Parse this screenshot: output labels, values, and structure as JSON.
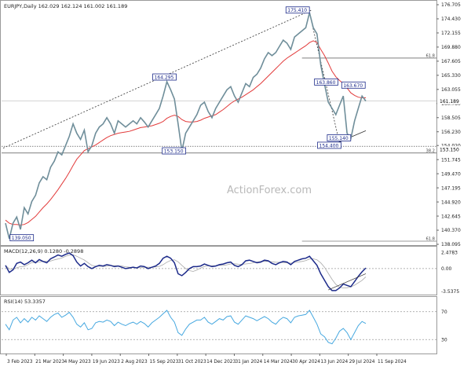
{
  "chart_data": [
    {
      "type": "line",
      "title": "EURJPY,Daily  162.029 162.124 161.002 161.189",
      "series": [
        {
          "name": "",
          "values": [
            141.5,
            139.0,
            141.5,
            142.5,
            140.5,
            144,
            143,
            145,
            146,
            148,
            149,
            148.5,
            150.5,
            151.5,
            153,
            152.5,
            154,
            155.5,
            157.5,
            156,
            155,
            156.5,
            153,
            154,
            156,
            157,
            157.5,
            158.5,
            157.5,
            156,
            158,
            157.5,
            157,
            157.5,
            158,
            157.5,
            158.5,
            157.8,
            157,
            158,
            159,
            160,
            162,
            164.3,
            163,
            161.5,
            157.5,
            153.15,
            156,
            157,
            158,
            159,
            160.5,
            161,
            159.5,
            158.5,
            160,
            161,
            162,
            163,
            163.5,
            162,
            161,
            162.5,
            164,
            163.5,
            165,
            165.5,
            166.5,
            168,
            169,
            168.5,
            169,
            170,
            171,
            170.5,
            169.5,
            171.5,
            172,
            172.5,
            173,
            175.41,
            173,
            172,
            167,
            163.9,
            161,
            160,
            159,
            160.5,
            162,
            156,
            155.14,
            158,
            160,
            162,
            161.189
          ]
        },
        {
          "name": "",
          "values": [
            142,
            141.5,
            141.3,
            141.3,
            141.2,
            141.3,
            141.6,
            142.1,
            142.6,
            143.3,
            144,
            144.6,
            145.3,
            146.1,
            146.9,
            147.8,
            148.7,
            149.7,
            150.8,
            151.8,
            152.5,
            153.2,
            153.5,
            153.8,
            154.1,
            154.5,
            154.9,
            155.3,
            155.6,
            155.8,
            156,
            156.1,
            156.2,
            156.3,
            156.5,
            156.7,
            156.9,
            157,
            157.1,
            157.2,
            157.4,
            157.6,
            157.9,
            158.4,
            158.7,
            158.9,
            158.7,
            158.2,
            157.9,
            157.8,
            157.8,
            157.9,
            158.1,
            158.4,
            158.6,
            158.8,
            159,
            159.4,
            159.8,
            160.3,
            160.8,
            161.2,
            161.5,
            161.8,
            162.2,
            162.6,
            163,
            163.5,
            164,
            164.6,
            165.2,
            165.8,
            166.4,
            167,
            167.6,
            168.1,
            168.5,
            168.9,
            169.3,
            169.7,
            170.1,
            170.6,
            170.9,
            170.6,
            169.5,
            168.5,
            167.3,
            166,
            165.1,
            164.5,
            164,
            163.3,
            162.5,
            162.1,
            161.8,
            161.7,
            161.7
          ]
        }
      ],
      "y_ticks": [
        "176.705",
        "174.430",
        "172.155",
        "169.880",
        "167.605",
        "165.330",
        "163.055",
        "160.780",
        "158.505",
        "156.230",
        "154.020",
        "151.745",
        "149.470",
        "147.195",
        "144.920",
        "142.645",
        "140.370",
        "138.095"
      ],
      "x_ticks": [
        "3 Feb 2023",
        "21 Mar 2023",
        "4 May 2023",
        "19 Jun 2023",
        "2 Aug 2023",
        "15 Sep 2023",
        "31 Oct 2023",
        "14 Dec 2023",
        "31 Jan 2024",
        "14 Mar 2024",
        "30 Apr 2024",
        "13 Jun 2024",
        "29 Jul 2024",
        "11 Sep 2024"
      ],
      "ylim": [
        138.095,
        176.705
      ],
      "price_labels": [
        "139.050",
        "153.150",
        "164.295",
        "175.410",
        "163.860",
        "163.670",
        "154.400",
        "155.140"
      ],
      "fib_labels": [
        "61.8",
        "38.2",
        "61.8"
      ],
      "current_price_label": "161.189",
      "support_price_label": "153.150"
    },
    {
      "type": "line",
      "title": "MACD(12,26,9) 0.1280 -0.2898",
      "y_ticks": [
        "2.4783",
        "0.00",
        "-3.5375"
      ],
      "series": [
        {
          "name": "",
          "values": [
            0.5,
            -0.6,
            -0.2,
            0.8,
            1.0,
            0.6,
            0.9,
            1.3,
            0.9,
            1.4,
            1.1,
            0.9,
            1.5,
            1.8,
            2.1,
            1.9,
            2.2,
            2.4,
            2.0,
            1.0,
            0.4,
            0.8,
            0.3,
            0.0,
            0.3,
            0.5,
            0.4,
            0.6,
            0.5,
            0.3,
            0.4,
            0.2,
            0.0,
            0.1,
            0.2,
            0.1,
            0.4,
            0.3,
            0.0,
            0.2,
            0.4,
            0.8,
            1.6,
            1.9,
            1.6,
            0.9,
            -0.8,
            -1.1,
            -0.6,
            0.0,
            0.3,
            0.3,
            0.4,
            0.7,
            0.5,
            0.3,
            0.4,
            0.6,
            0.7,
            0.9,
            1.0,
            0.5,
            0.3,
            0.6,
            1.2,
            1.3,
            1.1,
            0.9,
            1.0,
            1.3,
            1.2,
            0.8,
            0.6,
            0.9,
            1.1,
            1.0,
            0.6,
            1.1,
            1.3,
            1.5,
            1.6,
            1.9,
            1.2,
            0.5,
            -0.8,
            -1.8,
            -2.8,
            -3.4,
            -3.4,
            -3.0,
            -2.4,
            -2.6,
            -2.8,
            -2.0,
            -1.2,
            -0.5,
            0.1
          ]
        }
      ]
    },
    {
      "type": "line",
      "title": "RSI(14) 53.3357",
      "y_ticks": [
        "70",
        "30"
      ],
      "ylim": [
        10,
        90
      ],
      "series": [
        {
          "name": "",
          "values": [
            52,
            44,
            58,
            62,
            54,
            60,
            55,
            62,
            58,
            64,
            60,
            56,
            62,
            66,
            68,
            62,
            65,
            69,
            62,
            52,
            48,
            54,
            44,
            46,
            54,
            56,
            55,
            58,
            56,
            50,
            55,
            52,
            50,
            53,
            55,
            52,
            56,
            53,
            48,
            54,
            58,
            62,
            67,
            72,
            62,
            55,
            40,
            36,
            45,
            52,
            55,
            58,
            58,
            62,
            55,
            52,
            56,
            60,
            58,
            63,
            64,
            55,
            52,
            58,
            64,
            62,
            60,
            57,
            60,
            63,
            60,
            55,
            52,
            58,
            62,
            60,
            54,
            62,
            64,
            65,
            66,
            72,
            62,
            52,
            38,
            34,
            26,
            24,
            32,
            42,
            46,
            40,
            30,
            40,
            50,
            56,
            53
          ]
        }
      ]
    }
  ],
  "watermark": "ActionForex.com"
}
